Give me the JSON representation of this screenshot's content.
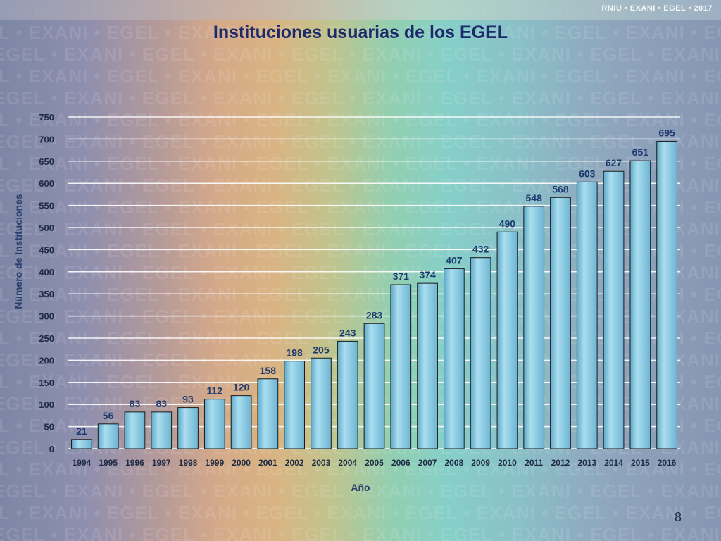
{
  "header": {
    "brand": "RNIU • EXANI • EGEL • 2017"
  },
  "watermark_text": "EGEL • EXANI • EGEL • EXANI • EGEL • EXANI • EGEL • EXANI • EGEL • EXANI • EGEL • EXANI",
  "page_number": "8",
  "chart_data": {
    "type": "bar",
    "title": "Instituciones usuarias de los EGEL",
    "xlabel": "Año",
    "ylabel": "Número de Instituciones",
    "categories": [
      "1994",
      "1995",
      "1996",
      "1997",
      "1998",
      "1999",
      "2000",
      "2001",
      "2002",
      "2003",
      "2004",
      "2005",
      "2006",
      "2007",
      "2008",
      "2009",
      "2010",
      "2011",
      "2012",
      "2013",
      "2014",
      "2015",
      "2016"
    ],
    "values": [
      21,
      56,
      83,
      83,
      93,
      112,
      120,
      158,
      198,
      205,
      243,
      283,
      371,
      374,
      407,
      432,
      490,
      548,
      568,
      603,
      627,
      651,
      695
    ],
    "ylim": [
      0,
      750
    ],
    "yticks": [
      0,
      50,
      100,
      150,
      200,
      250,
      300,
      350,
      400,
      450,
      500,
      550,
      600,
      650,
      700,
      750
    ],
    "grid": true,
    "data_labels": true,
    "colors": {
      "bar": "#7fc3dc",
      "bar_edge": "#1a1a1a",
      "label": "#1d3a6e",
      "grid": "#ffffff",
      "title": "#1d2a6b"
    }
  }
}
